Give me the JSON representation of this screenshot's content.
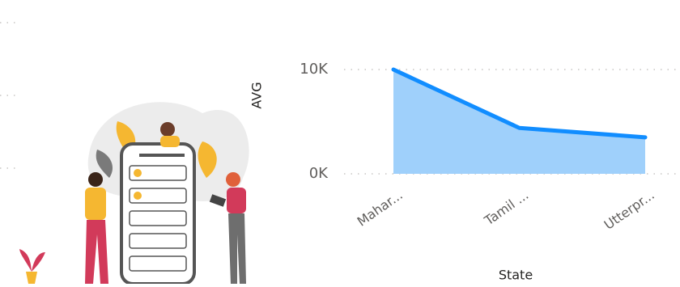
{
  "chart_data": {
    "type": "area",
    "y_label": "AVG",
    "x_label": "State",
    "categories": [
      "Mahar...",
      "Tamil ...",
      "Utterpr..."
    ],
    "values": [
      10000,
      4400,
      3500
    ],
    "line_color": "#118dff",
    "fill_color": "#9fd0fb",
    "ylim": [
      0,
      10000
    ],
    "yticks": [
      {
        "value": 0,
        "label": "0K"
      },
      {
        "value": 10000,
        "label": "10K"
      }
    ],
    "grid": true
  }
}
